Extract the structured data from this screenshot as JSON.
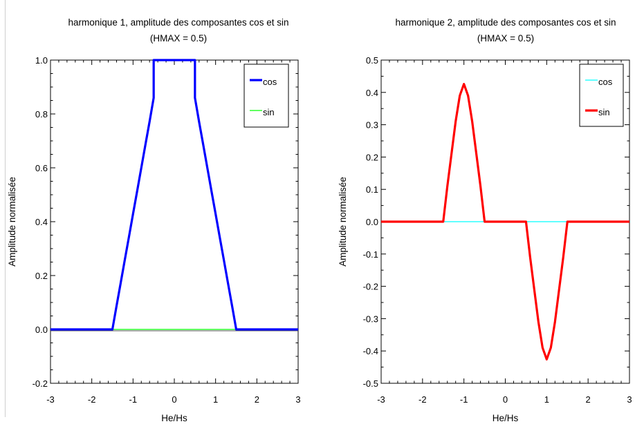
{
  "chart_data": [
    {
      "type": "line",
      "title": "harmonique 1, amplitude des composantes cos et sin",
      "subtitle": "(HMAX = 0.5)",
      "xlabel": "He/Hs",
      "ylabel": "Amplitude normalisée",
      "xlim": [
        -3,
        3
      ],
      "ylim": [
        -0.2,
        1.0
      ],
      "xticks": [
        "-3",
        "-2",
        "-1",
        "0",
        "1",
        "2",
        "3"
      ],
      "yticks": [
        "-0.2",
        "0.0",
        "0.2",
        "0.4",
        "0.6",
        "0.8",
        "1.0"
      ],
      "grid": false,
      "legend_position": "top-right",
      "series": [
        {
          "name": "cos",
          "color": "#0000ff",
          "points": [
            [
              -3,
              0
            ],
            [
              -1.5,
              0
            ],
            [
              -1.4,
              0.087
            ],
            [
              -1.3,
              0.172
            ],
            [
              -1.2,
              0.258
            ],
            [
              -1.1,
              0.343
            ],
            [
              -1.0,
              0.429
            ],
            [
              -0.9,
              0.514
            ],
            [
              -0.8,
              0.6
            ],
            [
              -0.7,
              0.686
            ],
            [
              -0.6,
              0.771
            ],
            [
              -0.5,
              0.86
            ],
            [
              -0.5,
              1.0
            ],
            [
              0.5,
              1.0
            ],
            [
              0.5,
              0.86
            ],
            [
              0.6,
              0.771
            ],
            [
              0.7,
              0.686
            ],
            [
              0.8,
              0.6
            ],
            [
              0.9,
              0.514
            ],
            [
              1.0,
              0.429
            ],
            [
              1.1,
              0.343
            ],
            [
              1.2,
              0.258
            ],
            [
              1.3,
              0.172
            ],
            [
              1.4,
              0.087
            ],
            [
              1.5,
              0
            ],
            [
              3,
              0
            ]
          ]
        },
        {
          "name": "sin",
          "color": "#00ff00",
          "points": [
            [
              -3,
              0
            ],
            [
              3,
              0
            ]
          ]
        }
      ]
    },
    {
      "type": "line",
      "title": "harmonique 2, amplitude des composantes cos et sin",
      "subtitle": "(HMAX = 0.5)",
      "xlabel": "He/Hs",
      "ylabel": "Amplitude normalisée",
      "xlim": [
        -3,
        3
      ],
      "ylim": [
        -0.5,
        0.5
      ],
      "xticks": [
        "-3",
        "-2",
        "-1",
        "0",
        "1",
        "2",
        "3"
      ],
      "yticks": [
        "-0.5",
        "-0.4",
        "-0.3",
        "-0.2",
        "-0.1",
        "0.0",
        "0.1",
        "0.2",
        "0.3",
        "0.4",
        "0.5"
      ],
      "grid": false,
      "legend_position": "top-right",
      "series": [
        {
          "name": "cos",
          "color": "#00ffff",
          "points": [
            [
              -3,
              0
            ],
            [
              3,
              0
            ]
          ]
        },
        {
          "name": "sin",
          "color": "#ff0000",
          "points": [
            [
              -3,
              0
            ],
            [
              -1.5,
              0
            ],
            [
              -1.4,
              0.11
            ],
            [
              -1.3,
              0.21
            ],
            [
              -1.2,
              0.31
            ],
            [
              -1.1,
              0.39
            ],
            [
              -1.0,
              0.426
            ],
            [
              -0.9,
              0.39
            ],
            [
              -0.8,
              0.31
            ],
            [
              -0.7,
              0.21
            ],
            [
              -0.6,
              0.11
            ],
            [
              -0.5,
              0
            ],
            [
              0.5,
              0
            ],
            [
              0.6,
              -0.11
            ],
            [
              0.7,
              -0.21
            ],
            [
              0.8,
              -0.31
            ],
            [
              0.9,
              -0.39
            ],
            [
              1.0,
              -0.426
            ],
            [
              1.1,
              -0.39
            ],
            [
              1.2,
              -0.31
            ],
            [
              1.3,
              -0.21
            ],
            [
              1.4,
              -0.11
            ],
            [
              1.5,
              0
            ],
            [
              3,
              0
            ]
          ]
        }
      ]
    }
  ]
}
